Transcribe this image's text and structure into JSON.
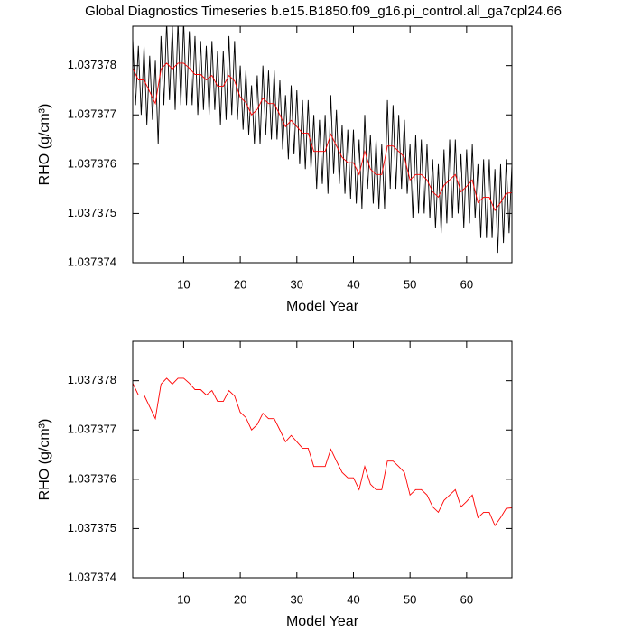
{
  "chart_data": [
    {
      "type": "line",
      "title": "Global Diagnostics Timeseries b.e15.B1850.f09_g16.pi_control.all_ga7cpl24.66",
      "x_label": "Model Year",
      "y_label": "RHO (g/cm³)",
      "xlim": [
        1,
        68
      ],
      "xticks": [
        10,
        20,
        30,
        40,
        50,
        60
      ],
      "ylim": [
        1.037374,
        1.0373788
      ],
      "yticks": [
        1.037374,
        1.037375,
        1.037376,
        1.037377,
        1.037378
      ],
      "series": [
        {
          "color": "#000000",
          "x": [
            1,
            1.5,
            2,
            2.5,
            3,
            3.5,
            4,
            4.5,
            5,
            5.5,
            6,
            6.5,
            7,
            7.5,
            8,
            8.5,
            9,
            9.5,
            10,
            10.5,
            11,
            11.5,
            12,
            12.5,
            13,
            13.5,
            14,
            14.5,
            15,
            15.5,
            16,
            16.5,
            17,
            17.5,
            18,
            18.5,
            19,
            19.5,
            20,
            20.5,
            21,
            21.5,
            22,
            22.5,
            23,
            23.5,
            24,
            24.5,
            25,
            25.5,
            26,
            26.5,
            27,
            27.5,
            28,
            28.5,
            29,
            29.5,
            30,
            30.5,
            31,
            31.5,
            32,
            32.5,
            33,
            33.5,
            34,
            34.5,
            35,
            35.5,
            36,
            36.5,
            37,
            37.5,
            38,
            38.5,
            39,
            39.5,
            40,
            40.5,
            41,
            41.5,
            42,
            42.5,
            43,
            43.5,
            44,
            44.5,
            45,
            45.5,
            46,
            46.5,
            47,
            47.5,
            48,
            48.5,
            49,
            49.5,
            50,
            50.5,
            51,
            51.5,
            52,
            52.5,
            53,
            53.5,
            54,
            54.5,
            55,
            55.5,
            56,
            56.5,
            57,
            57.5,
            58,
            58.5,
            59,
            59.5,
            60,
            60.5,
            61,
            61.5,
            62,
            62.5,
            63,
            63.5,
            64,
            64.5,
            65,
            65.5,
            66,
            66.5,
            67,
            67.5,
            68
          ],
          "values": [
            1.03737855,
            1.0373772,
            1.0373784,
            1.037377,
            1.0373784,
            1.0373768,
            1.0373782,
            1.0373769,
            1.0373781,
            1.0373764,
            1.0373786,
            1.0373772,
            1.0373789,
            1.0373773,
            1.0373788,
            1.0373771,
            1.0373789,
            1.0373772,
            1.0373789,
            1.0373772,
            1.0373787,
            1.0373772,
            1.0373786,
            1.037377,
            1.0373785,
            1.0373771,
            1.0373784,
            1.037377,
            1.0373785,
            1.0373771,
            1.0373783,
            1.0373768,
            1.0373783,
            1.0373769,
            1.0373786,
            1.037377,
            1.0373785,
            1.0373769,
            1.037378,
            1.0373767,
            1.0373779,
            1.0373766,
            1.0373776,
            1.0373764,
            1.0373778,
            1.0373764,
            1.037378,
            1.0373766,
            1.0373779,
            1.0373765,
            1.0373779,
            1.0373765,
            1.0373777,
            1.0373763,
            1.0373774,
            1.0373761,
            1.0373776,
            1.0373762,
            1.0373775,
            1.037376,
            1.0373773,
            1.0373759,
            1.0373773,
            1.0373759,
            1.037377,
            1.0373755,
            1.0373769,
            1.0373756,
            1.037377,
            1.0373754,
            1.0373774,
            1.0373758,
            1.0373771,
            1.0373756,
            1.0373768,
            1.0373754,
            1.0373767,
            1.0373753,
            1.0373767,
            1.0373752,
            1.0373765,
            1.0373751,
            1.037377,
            1.0373755,
            1.0373766,
            1.0373752,
            1.0373765,
            1.0373751,
            1.0373764,
            1.0373751,
            1.0373773,
            1.0373755,
            1.0373772,
            1.0373755,
            1.037377,
            1.0373755,
            1.0373769,
            1.0373754,
            1.0373764,
            1.0373749,
            1.0373766,
            1.037375,
            1.0373765,
            1.037375,
            1.0373764,
            1.0373749,
            1.0373761,
            1.0373747,
            1.037376,
            1.0373746,
            1.0373763,
            1.0373748,
            1.0373765,
            1.0373749,
            1.0373765,
            1.037375,
            1.0373762,
            1.0373747,
            1.0373763,
            1.0373748,
            1.0373764,
            1.0373749,
            1.037376,
            1.0373745,
            1.0373761,
            1.0373745,
            1.0373761,
            1.0373745,
            1.0373759,
            1.0373742,
            1.037376,
            1.0373744,
            1.0373761,
            1.0373746,
            1.037376
          ]
        },
        {
          "color": "#ff0000",
          "x": [
            1,
            2,
            3,
            4,
            5,
            6,
            7,
            8,
            9,
            10,
            11,
            12,
            13,
            14,
            15,
            16,
            17,
            18,
            19,
            20,
            21,
            22,
            23,
            24,
            25,
            26,
            27,
            28,
            29,
            30,
            31,
            32,
            33,
            34,
            35,
            36,
            37,
            38,
            39,
            40,
            41,
            42,
            43,
            44,
            45,
            46,
            47,
            48,
            49,
            50,
            51,
            52,
            53,
            54,
            55,
            56,
            57,
            58,
            59,
            60,
            61,
            62,
            63,
            64,
            65,
            66,
            67,
            68
          ],
          "values": [
            1.03737795,
            1.03737771,
            1.03737771,
            1.03737747,
            1.03737723,
            1.03737793,
            1.03737805,
            1.03737793,
            1.03737805,
            1.03737805,
            1.03737795,
            1.03737782,
            1.03737782,
            1.03737771,
            1.0373778,
            1.03737758,
            1.03737758,
            1.0373778,
            1.03737769,
            1.03737736,
            1.03737725,
            1.037377,
            1.03737711,
            1.03737734,
            1.03737723,
            1.03737723,
            1.037377,
            1.03737676,
            1.03737689,
            1.03737676,
            1.03737663,
            1.03737663,
            1.03737626,
            1.03737626,
            1.03737626,
            1.03737661,
            1.03737637,
            1.03737614,
            1.03737603,
            1.03737603,
            1.03737579,
            1.03737626,
            1.0373759,
            1.03737579,
            1.03737579,
            1.03737637,
            1.03737637,
            1.03737626,
            1.03737614,
            1.03737568,
            1.03737579,
            1.03737579,
            1.03737568,
            1.03737544,
            1.03737533,
            1.03737557,
            1.03737568,
            1.03737579,
            1.03737544,
            1.03737555,
            1.03737568,
            1.03737522,
            1.03737533,
            1.03737533,
            1.03737506,
            1.03737522,
            1.03737541,
            1.03737542
          ]
        }
      ]
    },
    {
      "type": "line",
      "x_label": "Model Year",
      "y_label": "RHO (g/cm³)",
      "xlim": [
        1,
        68
      ],
      "xticks": [
        10,
        20,
        30,
        40,
        50,
        60
      ],
      "ylim": [
        1.037374,
        1.0373788
      ],
      "yticks": [
        1.037374,
        1.037375,
        1.037376,
        1.037377,
        1.037378
      ],
      "series": [
        {
          "color": "#ff0000",
          "x": [
            1,
            2,
            3,
            4,
            5,
            6,
            7,
            8,
            9,
            10,
            11,
            12,
            13,
            14,
            15,
            16,
            17,
            18,
            19,
            20,
            21,
            22,
            23,
            24,
            25,
            26,
            27,
            28,
            29,
            30,
            31,
            32,
            33,
            34,
            35,
            36,
            37,
            38,
            39,
            40,
            41,
            42,
            43,
            44,
            45,
            46,
            47,
            48,
            49,
            50,
            51,
            52,
            53,
            54,
            55,
            56,
            57,
            58,
            59,
            60,
            61,
            62,
            63,
            64,
            65,
            66,
            67,
            68
          ],
          "values": [
            1.03737795,
            1.03737771,
            1.03737771,
            1.03737747,
            1.03737723,
            1.03737793,
            1.03737805,
            1.03737793,
            1.03737805,
            1.03737805,
            1.03737795,
            1.03737782,
            1.03737782,
            1.03737771,
            1.0373778,
            1.03737758,
            1.03737758,
            1.0373778,
            1.03737769,
            1.03737736,
            1.03737725,
            1.037377,
            1.03737711,
            1.03737734,
            1.03737723,
            1.03737723,
            1.037377,
            1.03737676,
            1.03737689,
            1.03737676,
            1.03737663,
            1.03737663,
            1.03737626,
            1.03737626,
            1.03737626,
            1.03737661,
            1.03737637,
            1.03737614,
            1.03737603,
            1.03737603,
            1.03737579,
            1.03737626,
            1.0373759,
            1.03737579,
            1.03737579,
            1.03737637,
            1.03737637,
            1.03737626,
            1.03737614,
            1.03737568,
            1.03737579,
            1.03737579,
            1.03737568,
            1.03737544,
            1.03737533,
            1.03737557,
            1.03737568,
            1.03737579,
            1.03737544,
            1.03737555,
            1.03737568,
            1.03737522,
            1.03737533,
            1.03737533,
            1.03737506,
            1.03737522,
            1.03737541,
            1.03737542
          ]
        }
      ]
    }
  ]
}
